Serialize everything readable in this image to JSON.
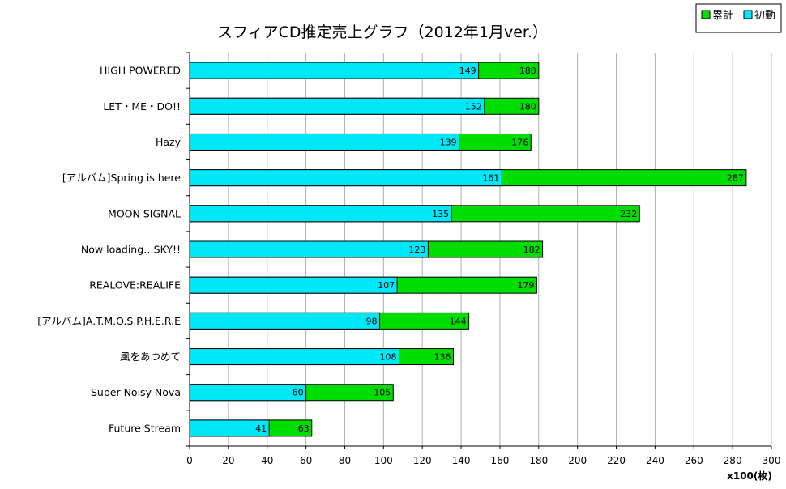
{
  "chart_data": {
    "type": "bar",
    "orientation": "horizontal",
    "stacked": false,
    "title": "スフィアCD推定売上グラフ（2012年1月ver.）",
    "xlabel": "x100(枚)",
    "ylabel": "",
    "xlim": [
      0,
      300
    ],
    "xticks": [
      0,
      20,
      40,
      60,
      80,
      100,
      120,
      140,
      160,
      180,
      200,
      220,
      240,
      260,
      280,
      300
    ],
    "grid": true,
    "legend_position": "top-right",
    "categories": [
      "HIGH POWERED",
      "LET・ME・DO!!",
      "Hazy",
      "[アルバム]Spring is here",
      "MOON SIGNAL",
      "Now loading…SKY!!",
      "REALOVE:REALIFE",
      "[アルバム]A.T.M.O.S.P.H.E.R.E",
      "風をあつめて",
      "Super Noisy Nova",
      "Future Stream"
    ],
    "series": [
      {
        "name": "累計",
        "color": "#00dd00",
        "values": [
          180,
          180,
          176,
          287,
          232,
          182,
          179,
          144,
          136,
          105,
          63
        ]
      },
      {
        "name": "初動",
        "color": "#00e8f8",
        "values": [
          149,
          152,
          139,
          161,
          135,
          123,
          107,
          98,
          108,
          60,
          41
        ]
      }
    ]
  }
}
